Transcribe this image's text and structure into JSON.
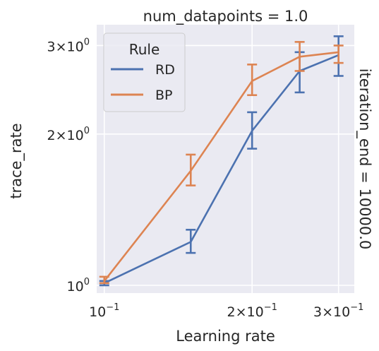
{
  "chart_data": {
    "type": "line",
    "title": "num_datapoints = 1.0",
    "facet_label": "iteration_end = 10000.0",
    "xlabel": "Learning rate",
    "ylabel": "trace_rate",
    "xscale": "log",
    "yscale": "log",
    "xlim": [
      0.0965,
      0.323
    ],
    "ylim": [
      0.965,
      3.3
    ],
    "grid": true,
    "legend": {
      "title": "Rule",
      "placement": "top-left"
    },
    "x_ticks": [
      {
        "value": 0.1,
        "mantissa": "",
        "base": "10",
        "exp": "−1"
      },
      {
        "value": 0.2,
        "mantissa": "2×",
        "base": "10",
        "exp": "−1"
      },
      {
        "value": 0.3,
        "mantissa": "3×",
        "base": "10",
        "exp": "−1"
      }
    ],
    "y_ticks": [
      {
        "value": 1.0,
        "mantissa": "",
        "base": "10",
        "exp": "0"
      },
      {
        "value": 2.0,
        "mantissa": "2×",
        "base": "10",
        "exp": "0"
      },
      {
        "value": 3.0,
        "mantissa": "3×",
        "base": "10",
        "exp": "0"
      }
    ],
    "x": [
      0.1,
      0.15,
      0.2,
      0.25,
      0.3
    ],
    "series": [
      {
        "name": "RD",
        "color": "#4c72b0",
        "values": [
          1.01,
          1.22,
          2.03,
          2.67,
          2.87
        ],
        "err_low": [
          1.0,
          1.16,
          1.87,
          2.42,
          2.61
        ],
        "err_high": [
          1.02,
          1.29,
          2.21,
          2.91,
          3.13
        ]
      },
      {
        "name": "BP",
        "color": "#dd8452",
        "values": [
          1.02,
          1.69,
          2.55,
          2.85,
          2.91
        ],
        "err_low": [
          1.01,
          1.58,
          2.39,
          2.67,
          2.77
        ],
        "err_high": [
          1.04,
          1.82,
          2.75,
          3.05,
          3.0
        ]
      }
    ]
  }
}
